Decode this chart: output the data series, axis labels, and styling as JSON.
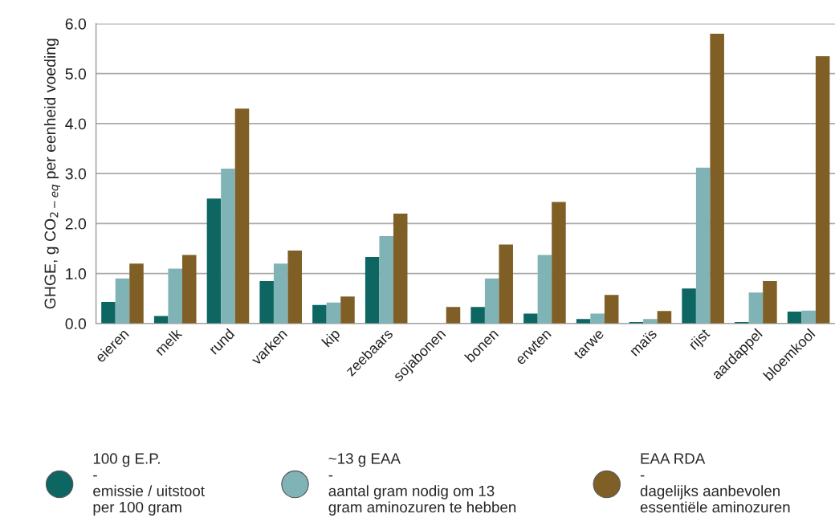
{
  "chart_data": {
    "type": "bar",
    "ylabel": "GHGE, g CO$_{2−eq}$ per eenheid voeding",
    "categories": [
      "eieren",
      "melk",
      "rund",
      "varken",
      "kip",
      "zeebaars",
      "sojabonen",
      "bonen",
      "erwten",
      "tarwe",
      "maïs",
      "rijst",
      "aardappel",
      "bloemkool"
    ],
    "series": [
      {
        "name": "100 g E.P.\n-\nemissie / uitstoot\nper 100 gram",
        "color": "#0e6663",
        "values": [
          0.43,
          0.15,
          2.5,
          0.85,
          0.37,
          1.33,
          null,
          0.33,
          0.2,
          0.09,
          0.03,
          0.7,
          0.03,
          0.24
        ]
      },
      {
        "name": "~13 g EAA\n-\naantal gram nodig om 13\ngram aminozuren te hebben",
        "color": "#80b3b5",
        "values": [
          0.9,
          1.1,
          3.1,
          1.2,
          0.42,
          1.75,
          null,
          0.9,
          1.37,
          0.2,
          0.09,
          3.12,
          0.62,
          0.26
        ]
      },
      {
        "name": "EAA RDA\n-\ndagelijks aanbevolen\nessentiële aminozuren",
        "color": "#7f5f26",
        "values": [
          1.2,
          1.37,
          4.3,
          1.46,
          0.54,
          2.2,
          0.33,
          1.58,
          2.43,
          0.57,
          0.25,
          5.8,
          0.85,
          5.35
        ]
      }
    ],
    "ylim": [
      0,
      6
    ],
    "yticks": [
      {
        "value": 0,
        "label": "0.0"
      },
      {
        "value": 1,
        "label": "1.0"
      },
      {
        "value": 2,
        "label": "2.0"
      },
      {
        "value": 3,
        "label": "3.0"
      },
      {
        "value": 4,
        "label": "4.0"
      },
      {
        "value": 5,
        "label": "5.0"
      },
      {
        "value": 6,
        "label": "6.0"
      }
    ],
    "grid": "y",
    "legend": "bottom"
  }
}
